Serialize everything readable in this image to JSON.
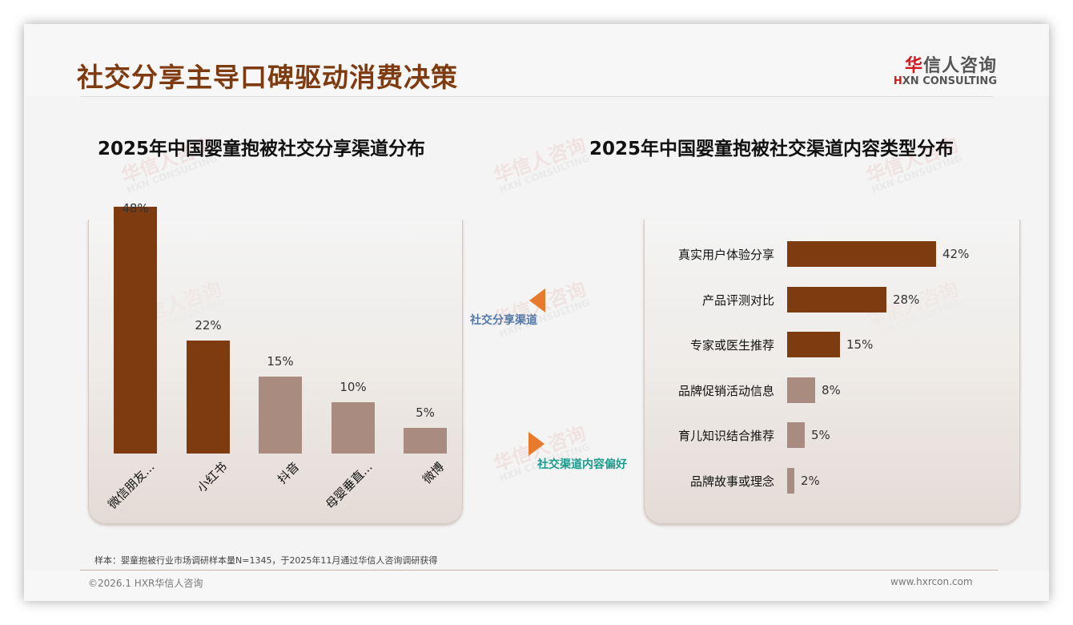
{
  "page": {
    "title": "社交分享主导口碑驱动消费决策",
    "logo_cn_first": "华",
    "logo_cn_rest": "信人咨询",
    "logo_en_first": "H",
    "logo_en_rest": "XN CONSULTING"
  },
  "watermark": {
    "cn": "华信人咨询",
    "en": "HXN CONSULTING"
  },
  "connectors": {
    "left_label": "社交分享渠道",
    "right_label": "社交渠道内容偏好",
    "arrow_color": "#e87a2c"
  },
  "colors": {
    "primary_bar": "#7f3b10",
    "secondary_bar": "#a98b80",
    "title": "#7f3b10"
  },
  "chart_data": [
    {
      "type": "bar",
      "orientation": "vertical",
      "title": "2025年中国婴童抱被社交分享渠道分布",
      "categories": [
        "微信朋友...",
        "小红书",
        "抖音",
        "母婴垂直...",
        "微博"
      ],
      "values": [
        48,
        22,
        15,
        10,
        5
      ],
      "value_labels": [
        "48%",
        "22%",
        "15%",
        "10%",
        "5%"
      ],
      "highlight": [
        true,
        true,
        false,
        false,
        false
      ],
      "unit": "%",
      "xlabel": "",
      "ylabel": "",
      "grid": false,
      "legend": false
    },
    {
      "type": "bar",
      "orientation": "horizontal",
      "title": "2025年中国婴童抱被社交渠道内容类型分布",
      "categories": [
        "真实用户体验分享",
        "产品评测对比",
        "专家或医生推荐",
        "品牌促销活动信息",
        "育儿知识结合推荐",
        "品牌故事或理念"
      ],
      "values": [
        42,
        28,
        15,
        8,
        5,
        2
      ],
      "value_labels": [
        "42%",
        "28%",
        "15%",
        "8%",
        "5%",
        "2%"
      ],
      "highlight": [
        true,
        true,
        true,
        false,
        false,
        false
      ],
      "unit": "%",
      "xlabel": "",
      "ylabel": "",
      "grid": false,
      "legend": false
    }
  ],
  "footer": {
    "note": "样本：婴童抱被行业市场调研样本量N=1345，于2025年11月通过华信人咨询调研获得",
    "copyright": "©2026.1 HXR华信人咨询",
    "website": "www.hxrcon.com"
  }
}
